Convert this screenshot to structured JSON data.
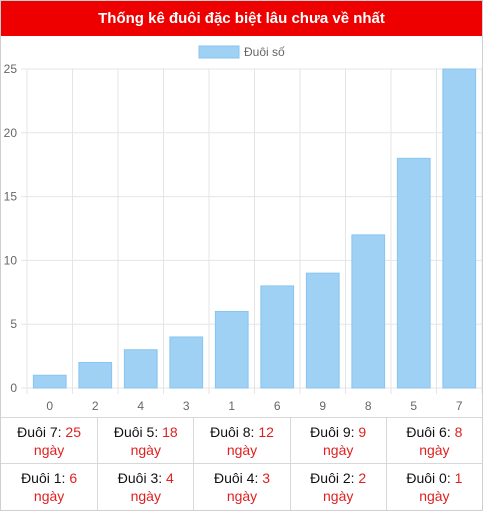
{
  "header": {
    "title": "Thống kê đuôi đặc biệt lâu chưa về nhất"
  },
  "chart_data": {
    "type": "bar",
    "categories": [
      "0",
      "2",
      "4",
      "3",
      "1",
      "6",
      "9",
      "8",
      "5",
      "7"
    ],
    "series": [
      {
        "name": "Đuôi số",
        "values": [
          1,
          2,
          3,
          4,
          6,
          8,
          9,
          12,
          18,
          25
        ]
      }
    ],
    "ylim": [
      0,
      25
    ],
    "yticks": [
      0,
      5,
      10,
      15,
      20,
      25
    ],
    "grid": true,
    "legend_position": "top",
    "colors": {
      "bar_fill": "#9fd1f4",
      "bar_stroke": "#8ac5ef",
      "grid": "#e5e5e5",
      "tick_text": "#666666"
    }
  },
  "stats": {
    "unit": "ngày",
    "rows": [
      [
        {
          "label": "Đuôi 7:",
          "value": "25"
        },
        {
          "label": "Đuôi 5:",
          "value": "18"
        },
        {
          "label": "Đuôi 8:",
          "value": "12"
        },
        {
          "label": "Đuôi 9:",
          "value": "9"
        },
        {
          "label": "Đuôi 6:",
          "value": "8"
        }
      ],
      [
        {
          "label": "Đuôi 1:",
          "value": "6"
        },
        {
          "label": "Đuôi 3:",
          "value": "4"
        },
        {
          "label": "Đuôi 4:",
          "value": "3"
        },
        {
          "label": "Đuôi 2:",
          "value": "2"
        },
        {
          "label": "Đuôi 0:",
          "value": "1"
        }
      ]
    ]
  }
}
